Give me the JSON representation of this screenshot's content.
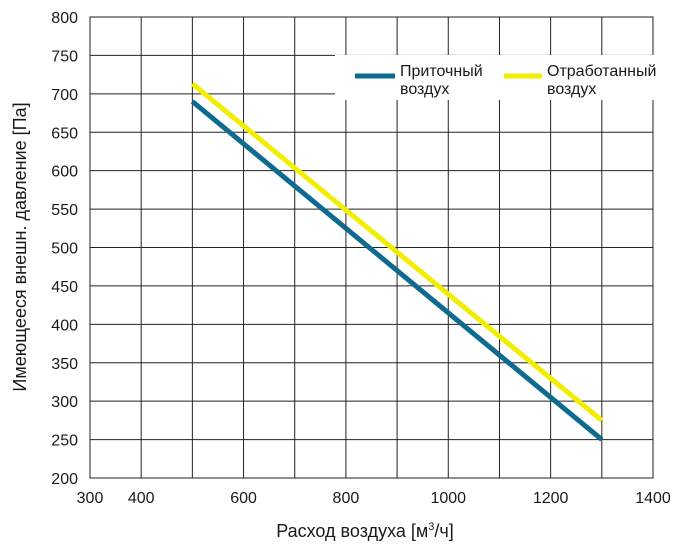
{
  "chart_data": {
    "type": "line",
    "title": "",
    "xlabel": "Расход воздуха [м³/ч]",
    "xlabel_main": "Расход воздуха [м",
    "xlabel_sup": "3",
    "xlabel_tail": "/ч]",
    "ylabel": "Имеющееся внешн. давление [Па]",
    "xlim": [
      300,
      1400
    ],
    "ylim": [
      200,
      800
    ],
    "x_ticks": [
      300,
      400,
      600,
      800,
      1000,
      1200,
      1400
    ],
    "x_tick_labels": [
      "300",
      "400",
      "600",
      "800",
      "1000",
      "1200",
      "1400"
    ],
    "y_ticks": [
      200,
      250,
      300,
      350,
      400,
      450,
      500,
      550,
      600,
      650,
      700,
      750,
      800
    ],
    "y_tick_labels": [
      "200",
      "250",
      "300",
      "350",
      "400",
      "450",
      "500",
      "550",
      "600",
      "650",
      "700",
      "750",
      "800"
    ],
    "x_grid": [
      300,
      400,
      500,
      600,
      700,
      800,
      900,
      1000,
      1100,
      1200,
      1300,
      1400
    ],
    "grid": true,
    "legend_position": "top-right",
    "series": [
      {
        "name_line1": "Приточный",
        "name_line2": "воздух",
        "color": "#0e6a8f",
        "x": [
          500,
          1300
        ],
        "y": [
          690,
          250
        ]
      },
      {
        "name_line1": "Отработанный",
        "name_line2": "воздух",
        "color": "#f2ee00",
        "x": [
          500,
          1300
        ],
        "y": [
          713,
          275
        ]
      }
    ]
  }
}
